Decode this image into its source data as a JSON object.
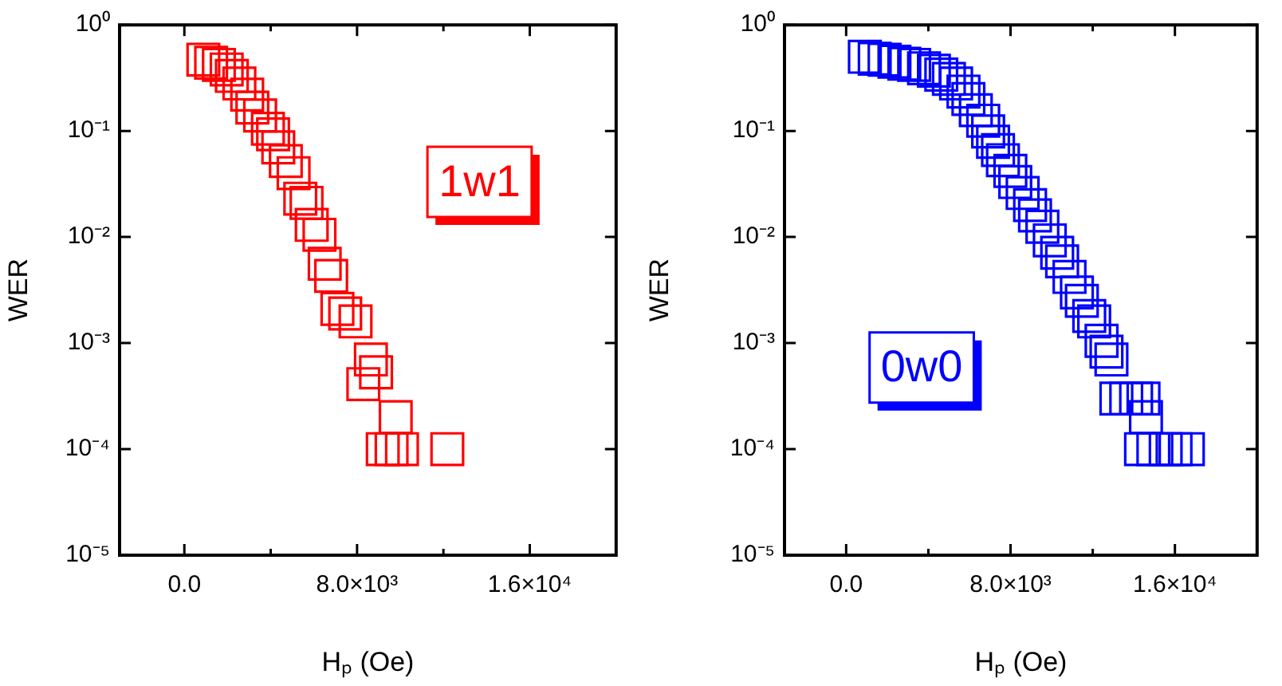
{
  "chart_data": [
    {
      "type": "scatter",
      "xlabel": "Hₚ (Oe)",
      "ylabel": "WER",
      "annotations": [
        "1w1"
      ],
      "log": "y",
      "grid": false,
      "legend": false,
      "marker": "square",
      "xlim": [
        -3000,
        20000
      ],
      "ylim": [
        1e-05,
        1
      ],
      "xticks": [
        {
          "value": 0,
          "label": "0.0"
        },
        {
          "value": 4000,
          "label": null
        },
        {
          "value": 8000,
          "label": "8.0×10³"
        },
        {
          "value": 12000,
          "label": null
        },
        {
          "value": 16000,
          "label": "1.6×10⁴"
        }
      ],
      "yticks": [
        {
          "value": 1e-05,
          "label": "10⁻⁵"
        },
        {
          "value": 0.0001,
          "label": "10⁻⁴"
        },
        {
          "value": 0.001,
          "label": "10⁻³"
        },
        {
          "value": 0.01,
          "label": "10⁻²"
        },
        {
          "value": 0.1,
          "label": "10⁻¹"
        },
        {
          "value": 1,
          "label": "10⁰"
        }
      ],
      "series": [
        {
          "color": "#ff0000",
          "x": [
            880,
            1240,
            1600,
            1960,
            2200,
            2550,
            2910,
            3150,
            3510,
            3870,
            4110,
            4350,
            4700,
            5060,
            5370,
            5660,
            5900,
            6260,
            6500,
            6800,
            7090,
            7450,
            7930,
            8640,
            8880,
            8290,
            9790,
            9190,
            9600,
            10080,
            12180
          ],
          "values": [
            0.47,
            0.44,
            0.42,
            0.38,
            0.33,
            0.28,
            0.22,
            0.166,
            0.14,
            0.105,
            0.093,
            0.07,
            0.052,
            0.04,
            0.023,
            0.021,
            0.013,
            0.0105,
            0.0056,
            0.0043,
            0.0021,
            0.0019,
            0.0016,
            0.0007,
            0.00053,
            0.00041,
            0.0002,
            0.0001,
            0.0001,
            0.0001,
            0.0001
          ]
        }
      ]
    },
    {
      "type": "scatter",
      "xlabel": "Hₚ (Oe)",
      "ylabel": "WER",
      "annotations": [
        "0w0"
      ],
      "log": "y",
      "grid": false,
      "legend": false,
      "marker": "square",
      "xlim": [
        -3000,
        20000
      ],
      "ylim": [
        1e-05,
        1
      ],
      "xticks": [
        {
          "value": 0,
          "label": "0.0"
        },
        {
          "value": 4000,
          "label": null
        },
        {
          "value": 8000,
          "label": "8.0×10³"
        },
        {
          "value": 12000,
          "label": null
        },
        {
          "value": 16000,
          "label": "1.6×10⁴"
        }
      ],
      "yticks": [
        {
          "value": 1e-05,
          "label": "10⁻⁵"
        },
        {
          "value": 0.0001,
          "label": "10⁻⁴"
        },
        {
          "value": 0.001,
          "label": "10⁻³"
        },
        {
          "value": 0.01,
          "label": "10⁻²"
        },
        {
          "value": 0.1,
          "label": "10⁻¹"
        },
        {
          "value": 1,
          "label": "10⁰"
        }
      ],
      "series": [
        {
          "color": "#0000ff",
          "x": [
            910,
            1390,
            1870,
            2350,
            2830,
            3310,
            3790,
            4270,
            4630,
            5000,
            5350,
            5710,
            5950,
            6310,
            6670,
            6910,
            7150,
            7390,
            7630,
            7990,
            8230,
            8590,
            8950,
            9190,
            9550,
            9910,
            10270,
            10510,
            10870,
            11230,
            11470,
            11830,
            12070,
            12430,
            12670,
            12910,
            13150,
            13630,
            14110,
            14470,
            14590,
            14350,
            14950,
            15550,
            16030,
            16630
          ],
          "values": [
            0.5,
            0.48,
            0.47,
            0.45,
            0.43,
            0.42,
            0.39,
            0.37,
            0.34,
            0.31,
            0.28,
            0.235,
            0.2,
            0.157,
            0.125,
            0.099,
            0.079,
            0.066,
            0.053,
            0.042,
            0.033,
            0.026,
            0.02,
            0.016,
            0.0125,
            0.0093,
            0.0071,
            0.0059,
            0.0042,
            0.003,
            0.0025,
            0.0018,
            0.0016,
            0.00105,
            0.00083,
            0.0007,
            0.0003,
            0.0003,
            0.0003,
            0.0003,
            0.0002,
            0.0001,
            0.0001,
            0.0001,
            0.0001,
            0.0001
          ]
        }
      ]
    }
  ]
}
